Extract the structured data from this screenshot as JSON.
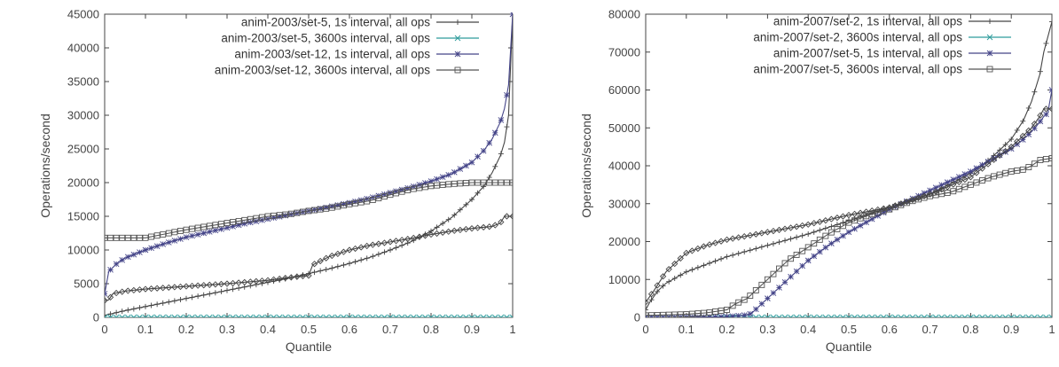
{
  "chart_data": [
    {
      "type": "line",
      "title": "",
      "xlabel": "Quantile",
      "ylabel": "Operations/second",
      "xlim": [
        0,
        1
      ],
      "ylim": [
        0,
        45000
      ],
      "xticks": [
        "0",
        "0.1",
        "0.2",
        "0.3",
        "0.4",
        "0.5",
        "0.6",
        "0.7",
        "0.8",
        "0.9",
        "1"
      ],
      "yticks": [
        "0",
        "5000",
        "10000",
        "15000",
        "20000",
        "25000",
        "30000",
        "35000",
        "40000",
        "45000"
      ],
      "legend_position": "top-left",
      "grid": false,
      "series": [
        {
          "name": "anim-2003/set-5, 1s interval, all ops",
          "color": "#444444",
          "marker": "plus",
          "x": [
            0,
            0.05,
            0.1,
            0.15,
            0.2,
            0.25,
            0.3,
            0.35,
            0.4,
            0.45,
            0.5,
            0.55,
            0.6,
            0.65,
            0.7,
            0.75,
            0.8,
            0.85,
            0.9,
            0.93,
            0.95,
            0.97,
            0.98,
            0.99,
            1.0
          ],
          "y": [
            300,
            1000,
            1600,
            2200,
            2800,
            3400,
            4000,
            4600,
            5200,
            5800,
            6500,
            7200,
            8000,
            8900,
            10000,
            11200,
            12800,
            14800,
            17500,
            19500,
            21500,
            24000,
            26000,
            30000,
            45000
          ]
        },
        {
          "name": "anim-2003/set-5, 3600s interval, all ops",
          "color": "#2e9c9c",
          "marker": "x",
          "x": [
            0,
            0.1,
            0.2,
            0.3,
            0.4,
            0.5,
            0.6,
            0.7,
            0.8,
            0.9,
            1.0
          ],
          "y": [
            0,
            0,
            0,
            0,
            0,
            0,
            0,
            0,
            0,
            0,
            0
          ]
        },
        {
          "name": "anim-2003/set-12, 1s interval, all ops",
          "color": "#444488",
          "marker": "star",
          "x": [
            0,
            0.01,
            0.03,
            0.05,
            0.1,
            0.15,
            0.2,
            0.25,
            0.3,
            0.35,
            0.4,
            0.45,
            0.5,
            0.55,
            0.6,
            0.65,
            0.7,
            0.75,
            0.8,
            0.85,
            0.9,
            0.93,
            0.95,
            0.97,
            0.98,
            0.99,
            1.0
          ],
          "y": [
            3500,
            6800,
            8000,
            8800,
            10000,
            11000,
            11900,
            12600,
            13300,
            14000,
            14600,
            15200,
            15800,
            16400,
            17000,
            17700,
            18500,
            19300,
            20200,
            21300,
            23000,
            24800,
            26500,
            29000,
            31000,
            34500,
            45000
          ]
        },
        {
          "name": "anim-2003/set-12, 3600s interval, all ops",
          "color": "#555555",
          "marker": "square",
          "x": [
            0,
            0.1,
            0.15,
            0.2,
            0.25,
            0.3,
            0.35,
            0.4,
            0.45,
            0.5,
            0.55,
            0.6,
            0.65,
            0.7,
            0.75,
            0.8,
            0.85,
            0.9,
            0.95,
            1.0
          ],
          "y": [
            11800,
            11800,
            12400,
            13000,
            13500,
            14000,
            14500,
            15000,
            15300,
            15800,
            16200,
            16800,
            17300,
            18200,
            19000,
            19500,
            19800,
            20000,
            20000,
            20000
          ]
        },
        {
          "name": "",
          "color": "#444444",
          "marker": "diamond",
          "x": [
            0,
            0.01,
            0.02,
            0.05,
            0.1,
            0.2,
            0.3,
            0.4,
            0.45,
            0.5,
            0.51,
            0.55,
            0.6,
            0.65,
            0.7,
            0.75,
            0.8,
            0.85,
            0.9,
            0.95,
            0.97,
            0.98,
            1.0
          ],
          "y": [
            2500,
            2600,
            3500,
            3900,
            4200,
            4600,
            5000,
            5500,
            5900,
            6200,
            7800,
            9000,
            10000,
            10700,
            11200,
            11700,
            12300,
            12800,
            13200,
            13500,
            14000,
            15000,
            15000
          ]
        }
      ]
    },
    {
      "type": "line",
      "title": "",
      "xlabel": "Quantile",
      "ylabel": "Operations/second",
      "xlim": [
        0,
        1
      ],
      "ylim": [
        0,
        80000
      ],
      "xticks": [
        "0",
        "0.1",
        "0.2",
        "0.3",
        "0.4",
        "0.5",
        "0.6",
        "0.7",
        "0.8",
        "0.9",
        "1"
      ],
      "yticks": [
        "0",
        "10000",
        "20000",
        "30000",
        "40000",
        "50000",
        "60000",
        "70000",
        "80000"
      ],
      "legend_position": "top-left",
      "grid": false,
      "series": [
        {
          "name": "anim-2007/set-2, 1s interval, all ops",
          "color": "#444444",
          "marker": "plus",
          "x": [
            0,
            0.01,
            0.03,
            0.05,
            0.1,
            0.15,
            0.2,
            0.3,
            0.4,
            0.5,
            0.6,
            0.7,
            0.8,
            0.85,
            0.9,
            0.93,
            0.95,
            0.97,
            0.98,
            1.0
          ],
          "y": [
            2000,
            4000,
            7000,
            9000,
            12000,
            14000,
            16000,
            19000,
            22000,
            25500,
            29000,
            32500,
            38000,
            42000,
            47000,
            52000,
            57000,
            64000,
            70000,
            78000
          ]
        },
        {
          "name": "anim-2007/set-2, 3600s interval, all ops",
          "color": "#2e9c9c",
          "marker": "x",
          "x": [
            0,
            0.1,
            0.2,
            0.3,
            0.4,
            0.5,
            0.6,
            0.7,
            0.8,
            0.9,
            1.0
          ],
          "y": [
            0,
            0,
            0,
            0,
            0,
            0,
            0,
            0,
            0,
            0,
            0
          ]
        },
        {
          "name": "anim-2007/set-5, 1s interval, all ops",
          "color": "#444488",
          "marker": "star",
          "x": [
            0,
            0.1,
            0.2,
            0.24,
            0.26,
            0.3,
            0.35,
            0.4,
            0.45,
            0.5,
            0.55,
            0.6,
            0.65,
            0.7,
            0.75,
            0.8,
            0.85,
            0.9,
            0.93,
            0.95,
            0.97,
            0.98,
            0.99,
            1.0
          ],
          "y": [
            0,
            0,
            200,
            500,
            1000,
            5000,
            10000,
            15000,
            19000,
            22500,
            25500,
            28500,
            31000,
            33500,
            36000,
            38500,
            41500,
            44500,
            47000,
            49000,
            51500,
            53000,
            54000,
            60000
          ]
        },
        {
          "name": "anim-2007/set-5, 3600s interval, all ops",
          "color": "#555555",
          "marker": "square",
          "x": [
            0,
            0.1,
            0.15,
            0.2,
            0.22,
            0.25,
            0.3,
            0.35,
            0.4,
            0.45,
            0.5,
            0.55,
            0.6,
            0.65,
            0.7,
            0.75,
            0.8,
            0.85,
            0.9,
            0.93,
            0.95,
            0.97,
            1.0
          ],
          "y": [
            500,
            800,
            1200,
            2000,
            3500,
            5000,
            10000,
            15000,
            18500,
            22000,
            25000,
            27000,
            28500,
            30500,
            32000,
            33000,
            35000,
            37000,
            38500,
            39000,
            40000,
            41500,
            42000
          ]
        },
        {
          "name": "",
          "color": "#444444",
          "marker": "diamond",
          "x": [
            0,
            0.02,
            0.05,
            0.07,
            0.1,
            0.15,
            0.2,
            0.3,
            0.4,
            0.5,
            0.55,
            0.6,
            0.7,
            0.8,
            0.9,
            0.95,
            0.97,
            0.98,
            1.0
          ],
          "y": [
            4000,
            7000,
            12000,
            14000,
            17000,
            19000,
            20500,
            22500,
            24500,
            27000,
            28000,
            29000,
            32500,
            37000,
            45000,
            50000,
            53000,
            55000,
            55000
          ]
        }
      ]
    }
  ]
}
